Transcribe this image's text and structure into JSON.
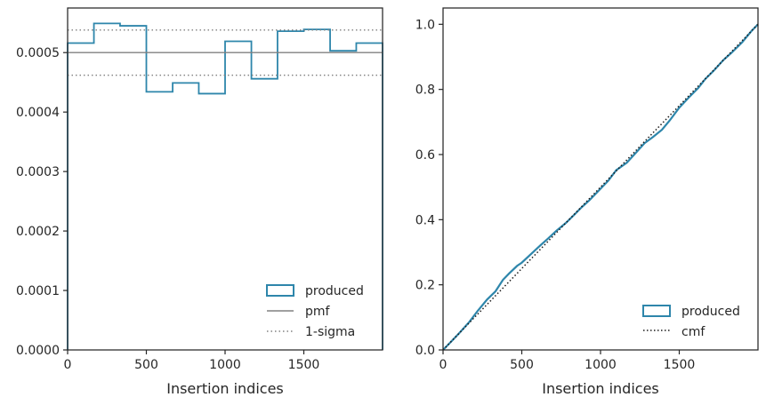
{
  "colors": {
    "produced": "#2e86ab",
    "pmf": "#808080",
    "sigma": "#808080",
    "cmf": "#1a1a1a",
    "axes": "#262626"
  },
  "chart_data": [
    {
      "type": "line",
      "title": "",
      "xlabel": "Insertion indices",
      "ylabel": "",
      "xlim": [
        0,
        2000
      ],
      "ylim": [
        0,
        0.000575
      ],
      "xticks": [
        0,
        500,
        1000,
        1500
      ],
      "xtick_labels": [
        "0",
        "500",
        "1000",
        "1500"
      ],
      "yticks": [
        0,
        0.0001,
        0.0002,
        0.0003,
        0.0004,
        0.0005
      ],
      "ytick_labels": [
        "0.0000",
        "0.0001",
        "0.0002",
        "0.0003",
        "0.0004",
        "0.0005"
      ],
      "grid": false,
      "legend_position": "lower-right",
      "legend": [
        "produced",
        "pmf",
        "1-sigma"
      ],
      "series": [
        {
          "name": "produced",
          "style": "step",
          "bin_edges": [
            0,
            167,
            333,
            500,
            667,
            833,
            1000,
            1167,
            1333,
            1500,
            1667,
            1833,
            2000
          ],
          "values": [
            0.000516,
            0.000549,
            0.000545,
            0.000434,
            0.000449,
            0.000431,
            0.000519,
            0.000456,
            0.000536,
            0.000539,
            0.000503,
            0.000516
          ]
        },
        {
          "name": "pmf",
          "style": "hline",
          "value": 0.0005
        },
        {
          "name": "1-sigma",
          "style": "hline-dotted",
          "values": [
            0.000538,
            0.000462
          ]
        }
      ]
    },
    {
      "type": "line",
      "title": "",
      "xlabel": "Insertion indices",
      "ylabel": "",
      "xlim": [
        0,
        2000
      ],
      "ylim": [
        0,
        1.05
      ],
      "xticks": [
        0,
        500,
        1000,
        1500
      ],
      "xtick_labels": [
        "0",
        "500",
        "1000",
        "1500"
      ],
      "yticks": [
        0,
        0.2,
        0.4,
        0.6,
        0.8,
        1.0
      ],
      "ytick_labels": [
        "0.0",
        "0.2",
        "0.4",
        "0.6",
        "0.8",
        "1.0"
      ],
      "grid": false,
      "legend_position": "lower-right",
      "legend": [
        "produced",
        "cmf"
      ],
      "series": [
        {
          "name": "produced",
          "x": [
            0,
            50,
            100,
            167,
            220,
            280,
            333,
            380,
            420,
            470,
            500,
            560,
            620,
            667,
            720,
            780,
            833,
            880,
            930,
            1000,
            1050,
            1100,
            1167,
            1220,
            1280,
            1333,
            1390,
            1440,
            1500,
            1560,
            1620,
            1667,
            1720,
            1780,
            1833,
            1900,
            1960,
            2000
          ],
          "y": [
            0,
            0.025,
            0.05,
            0.086,
            0.12,
            0.155,
            0.18,
            0.215,
            0.235,
            0.258,
            0.268,
            0.295,
            0.322,
            0.342,
            0.366,
            0.39,
            0.415,
            0.438,
            0.46,
            0.495,
            0.52,
            0.552,
            0.575,
            0.603,
            0.635,
            0.654,
            0.676,
            0.705,
            0.744,
            0.775,
            0.804,
            0.833,
            0.858,
            0.89,
            0.913,
            0.945,
            0.98,
            1.0
          ]
        },
        {
          "name": "cmf",
          "style": "dotted",
          "x": [
            0,
            2000
          ],
          "y": [
            0,
            1.0
          ]
        }
      ]
    }
  ]
}
